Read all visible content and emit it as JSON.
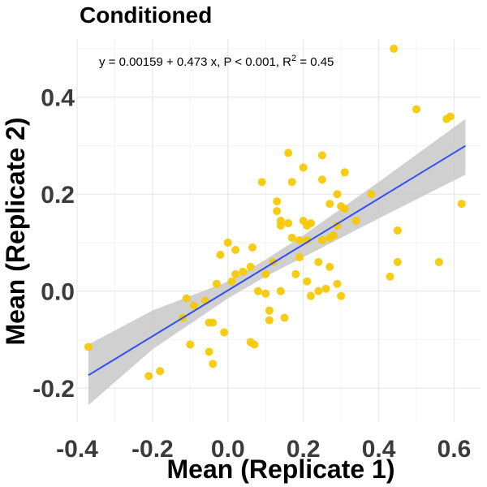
{
  "chart_data": {
    "type": "scatter",
    "title": "Conditioned",
    "xlabel": "Mean (Replicate 1)",
    "ylabel": "Mean (Replicate 2)",
    "xlim": [
      -0.4,
      0.67
    ],
    "ylim": [
      -0.27,
      0.52
    ],
    "x_ticks": [
      -0.4,
      -0.2,
      0.0,
      0.2,
      0.4,
      0.6
    ],
    "x_tick_labels": [
      "-0.4",
      "-0.2",
      "0.0",
      "0.2",
      "0.4",
      "0.6"
    ],
    "y_ticks": [
      -0.2,
      0.0,
      0.2,
      0.4
    ],
    "y_tick_labels": [
      "-0.2",
      "0.0",
      "0.2",
      "0.4"
    ],
    "grid": true,
    "annotation": {
      "pre": "y = 0.00159 + 0.473 x, P < 0.001, R",
      "sup": "2",
      "post": " = 0.45"
    },
    "point_color": "#F5C800",
    "line_color": "#3050F0",
    "band_color": "#C8C8C8",
    "fit": {
      "intercept": 0.00159,
      "slope": 0.473,
      "x_range": [
        -0.37,
        0.63
      ]
    },
    "confidence_band": [
      {
        "x": -0.37,
        "lower": -0.235,
        "upper": -0.11
      },
      {
        "x": -0.2,
        "lower": -0.12,
        "upper": -0.04
      },
      {
        "x": 0.0,
        "lower": -0.015,
        "upper": 0.02
      },
      {
        "x": 0.1,
        "lower": 0.03,
        "upper": 0.065
      },
      {
        "x": 0.2,
        "lower": 0.07,
        "upper": 0.115
      },
      {
        "x": 0.4,
        "lower": 0.15,
        "upper": 0.225
      },
      {
        "x": 0.63,
        "lower": 0.24,
        "upper": 0.355
      }
    ],
    "series": [
      {
        "points": [
          [
            -0.37,
            -0.115
          ],
          [
            -0.21,
            -0.175
          ],
          [
            -0.18,
            -0.165
          ],
          [
            -0.12,
            -0.055
          ],
          [
            -0.11,
            -0.015
          ],
          [
            -0.1,
            -0.11
          ],
          [
            -0.09,
            -0.03
          ],
          [
            -0.06,
            -0.02
          ],
          [
            -0.05,
            -0.125
          ],
          [
            -0.05,
            -0.065
          ],
          [
            -0.04,
            -0.065
          ],
          [
            -0.04,
            -0.15
          ],
          [
            -0.03,
            0.015
          ],
          [
            -0.02,
            0.075
          ],
          [
            -0.01,
            -0.085
          ],
          [
            0.0,
            0.1
          ],
          [
            0.01,
            0.02
          ],
          [
            0.02,
            0.035
          ],
          [
            0.02,
            0.085
          ],
          [
            0.04,
            0.04
          ],
          [
            0.06,
            0.05
          ],
          [
            0.06,
            -0.105
          ],
          [
            0.065,
            0.09
          ],
          [
            0.07,
            -0.11
          ],
          [
            0.08,
            0.0
          ],
          [
            0.09,
            0.225
          ],
          [
            0.1,
            0.035
          ],
          [
            0.1,
            -0.005
          ],
          [
            0.11,
            -0.04
          ],
          [
            0.11,
            -0.06
          ],
          [
            0.12,
            0.06
          ],
          [
            0.13,
            0.185
          ],
          [
            0.13,
            0.165
          ],
          [
            0.14,
            0.135
          ],
          [
            0.14,
            0.145
          ],
          [
            0.14,
            0.0
          ],
          [
            0.15,
            -0.055
          ],
          [
            0.16,
            0.285
          ],
          [
            0.16,
            0.14
          ],
          [
            0.17,
            0.11
          ],
          [
            0.17,
            0.225
          ],
          [
            0.18,
            0.035
          ],
          [
            0.19,
            0.105
          ],
          [
            0.19,
            0.07
          ],
          [
            0.2,
            0.255
          ],
          [
            0.2,
            0.145
          ],
          [
            0.21,
            0.135
          ],
          [
            0.21,
            0.105
          ],
          [
            0.21,
            0.02
          ],
          [
            0.22,
            0.14
          ],
          [
            0.22,
            -0.01
          ],
          [
            0.24,
            0.0
          ],
          [
            0.24,
            0.06
          ],
          [
            0.25,
            0.28
          ],
          [
            0.25,
            0.23
          ],
          [
            0.25,
            0.105
          ],
          [
            0.26,
            0.005
          ],
          [
            0.27,
            0.11
          ],
          [
            0.27,
            0.18
          ],
          [
            0.27,
            0.05
          ],
          [
            0.28,
            0.115
          ],
          [
            0.29,
            0.135
          ],
          [
            0.29,
            0.2
          ],
          [
            0.29,
            0.015
          ],
          [
            0.3,
            -0.01
          ],
          [
            0.3,
            0.175
          ],
          [
            0.31,
            0.245
          ],
          [
            0.31,
            0.17
          ],
          [
            0.34,
            0.145
          ],
          [
            0.38,
            0.2
          ],
          [
            0.43,
            0.03
          ],
          [
            0.44,
            0.5
          ],
          [
            0.45,
            0.125
          ],
          [
            0.45,
            0.06
          ],
          [
            0.5,
            0.375
          ],
          [
            0.56,
            0.06
          ],
          [
            0.58,
            0.355
          ],
          [
            0.59,
            0.36
          ],
          [
            0.62,
            0.18
          ]
        ]
      }
    ]
  }
}
